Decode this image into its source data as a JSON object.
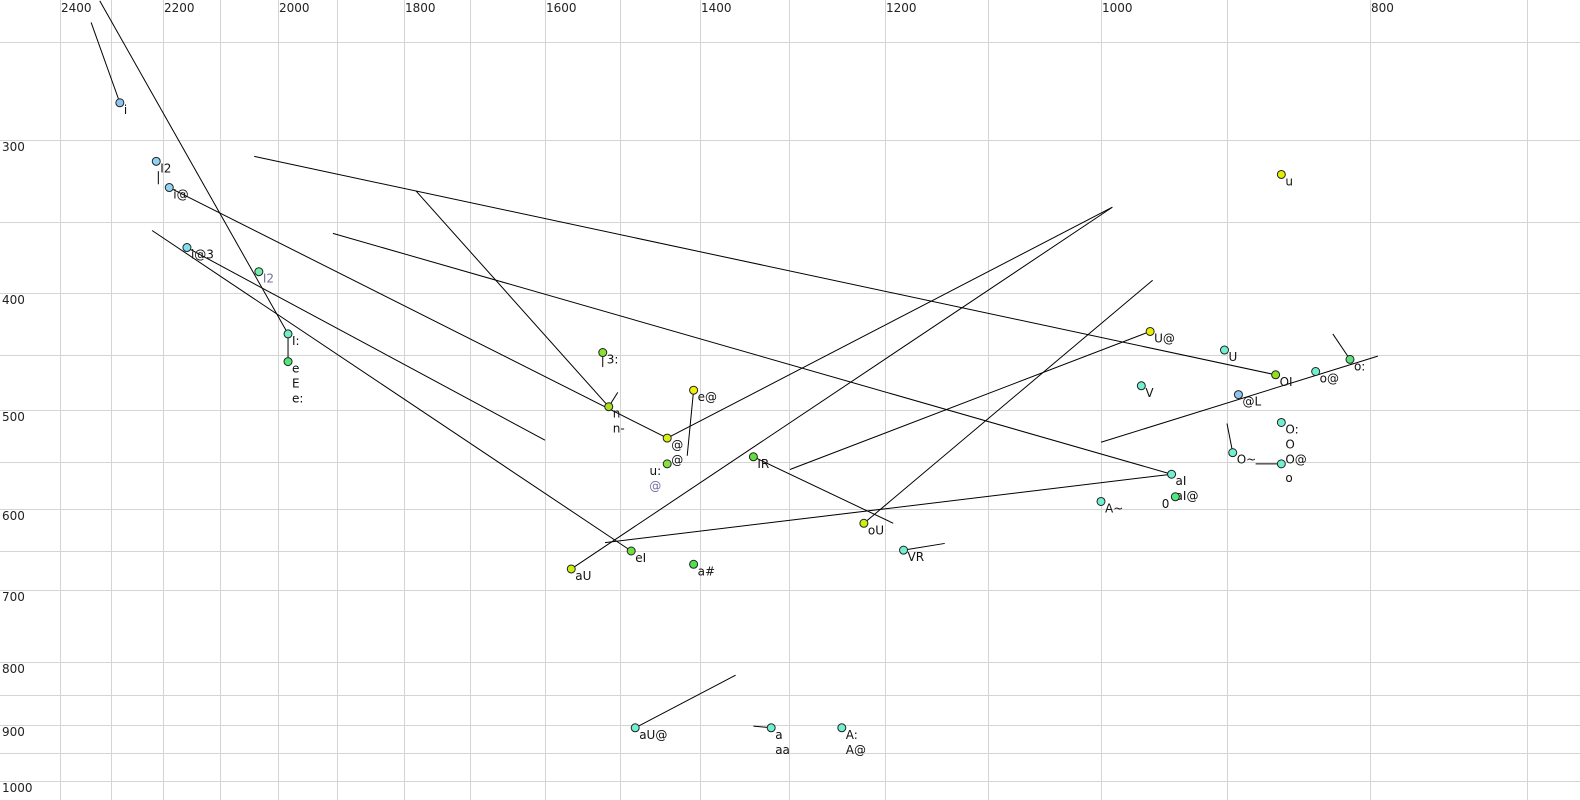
{
  "chart_data": {
    "type": "scatter",
    "title": "",
    "xlabel": "",
    "ylabel": "",
    "x_axis": {
      "reversed": true,
      "position": "top",
      "tick_labels": [
        2400,
        2200,
        2000,
        1800,
        1600,
        1400,
        1200,
        1000,
        800
      ],
      "grid": [
        2400,
        2300,
        2200,
        2100,
        2000,
        1900,
        1800,
        1700,
        1600,
        1500,
        1400,
        1300,
        1200,
        1100,
        1000,
        900,
        800,
        700
      ]
    },
    "y_axis": {
      "position": "left",
      "tick_labels": [
        300,
        400,
        500,
        600,
        700,
        800,
        900,
        1000
      ],
      "grid": [
        250,
        300,
        350,
        400,
        450,
        500,
        550,
        600,
        650,
        700,
        800,
        850,
        900,
        950,
        1000
      ]
    },
    "grid": true,
    "points": [
      {
        "f2": 2283,
        "f1": 281,
        "labels": [
          "i"
        ],
        "color": "#90c4f0"
      },
      {
        "f2": 2213,
        "f1": 313,
        "labels": [
          "I2"
        ],
        "color": "#90d0f0"
      },
      {
        "f2": 2189,
        "f1": 329,
        "labels": [
          "i@"
        ],
        "color": "#90d4f0"
      },
      {
        "f2": 2158,
        "f1": 368,
        "labels": [
          "i@3"
        ],
        "color": "#80e0f0"
      },
      {
        "f2": 2033,
        "f1": 385,
        "labels": [
          "I2"
        ],
        "color": "#70f0a8",
        "gray": true
      },
      {
        "f2": 1983,
        "f1": 433,
        "labels": [
          "I:"
        ],
        "color": "#70f0c0"
      },
      {
        "f2": 1983,
        "f1": 456,
        "labels": [
          "e",
          "E",
          "e:"
        ],
        "color": "#50e878"
      },
      {
        "f2": 1523,
        "f1": 448,
        "labels": [
          "3:"
        ],
        "color": "#88e030"
      },
      {
        "f2": 1515,
        "f1": 497,
        "labels": [
          "n",
          "n-"
        ],
        "color": "#a8e020"
      },
      {
        "f2": 1441,
        "f1": 527,
        "labels": [
          "@",
          "@"
        ],
        "color": "#d8f010"
      },
      {
        "f2": 1441,
        "f1": 552,
        "labels": [
          "u:",
          "@"
        ],
        "color": "#88e040"
      },
      {
        "f2": 1408,
        "f1": 482,
        "labels": [
          "e@"
        ],
        "color": "#f0f000"
      },
      {
        "f2": 1340,
        "f1": 545,
        "labels": [
          "IR"
        ],
        "color": "#60e040"
      },
      {
        "f2": 1565,
        "f1": 673,
        "labels": [
          "aU"
        ],
        "color": "#c8f010"
      },
      {
        "f2": 1486,
        "f1": 650,
        "labels": [
          "eI"
        ],
        "color": "#70e040"
      },
      {
        "f2": 1408,
        "f1": 667,
        "labels": [
          "a#"
        ],
        "color": "#50e050"
      },
      {
        "f2": 1222,
        "f1": 617,
        "labels": [
          "oU"
        ],
        "color": "#c8f010"
      },
      {
        "f2": 1182,
        "f1": 649,
        "labels": [
          "VR"
        ],
        "color": "#70f0d0"
      },
      {
        "f2": 961,
        "f1": 431,
        "labels": [
          "U@"
        ],
        "color": "#e8f000"
      },
      {
        "f2": 902,
        "f1": 446,
        "labels": [
          "U"
        ],
        "color": "#70f0d0"
      },
      {
        "f2": 968,
        "f1": 478,
        "labels": [
          "V"
        ],
        "color": "#70f0d0"
      },
      {
        "f2": 866,
        "f1": 468,
        "labels": [
          "OI"
        ],
        "color": "#90e020"
      },
      {
        "f2": 838,
        "f1": 465,
        "labels": [
          "o@"
        ],
        "color": "#70f0d0"
      },
      {
        "f2": 814,
        "f1": 454,
        "labels": [
          "o:"
        ],
        "color": "#60e080"
      },
      {
        "f2": 892,
        "f1": 486,
        "labels": [
          "@L"
        ],
        "color": "#90c4f0"
      },
      {
        "f2": 862,
        "f1": 512,
        "labels": [
          "O:",
          "O",
          "O@"
        ],
        "color": "#70f0d0"
      },
      {
        "f2": 896,
        "f1": 541,
        "labels": [
          "O~"
        ],
        "color": "#70f0d0"
      },
      {
        "f2": 862,
        "f1": 552,
        "labels": [
          "o"
        ],
        "color": "#70f0d0"
      },
      {
        "f2": 944,
        "f1": 563,
        "labels": [
          "aI",
          "aI@"
        ],
        "color": "#70f0d0"
      },
      {
        "f2": 941,
        "f1": 587,
        "labels": [
          "0"
        ],
        "color": "#50e880"
      },
      {
        "f2": 1000,
        "f1": 592,
        "labels": [
          "A~"
        ],
        "color": "#70f0d0"
      },
      {
        "f2": 862,
        "f1": 321,
        "labels": [
          "u"
        ],
        "color": "#e0f000"
      },
      {
        "f2": 1481,
        "f1": 905,
        "labels": [
          "aU@"
        ],
        "color": "#70f0d0"
      },
      {
        "f2": 1320,
        "f1": 905,
        "labels": [
          "a",
          "aa"
        ],
        "color": "#70f0d0"
      },
      {
        "f2": 1245,
        "f1": 905,
        "labels": [
          "A:",
          "A@"
        ],
        "color": "#70f0d0"
      }
    ],
    "trajectories": [
      {
        "from": [
          2339,
          240
        ],
        "to": [
          2283,
          281
        ]
      },
      {
        "from": [
          2322,
          229
        ],
        "to": [
          1983,
          433
        ]
      },
      {
        "from": [
          2041,
          310
        ],
        "to": [
          866,
          468
        ]
      },
      {
        "from": [
          2189,
          329
        ],
        "to": [
          1441,
          527
        ]
      },
      {
        "from": [
          2221,
          356
        ],
        "to": [
          1486,
          650
        ]
      },
      {
        "from": [
          2158,
          368
        ],
        "to": [
          1600,
          529
        ]
      },
      {
        "from": [
          1907,
          358
        ],
        "to": [
          944,
          563
        ]
      },
      {
        "from": [
          1782,
          331
        ],
        "to": [
          1515,
          497
        ]
      },
      {
        "from": [
          1515,
          497
        ],
        "to": [
          1503,
          484
        ]
      },
      {
        "from": [
          1441,
          527
        ],
        "to": [
          991,
          341
        ]
      },
      {
        "from": [
          1565,
          673
        ],
        "to": [
          991,
          341
        ]
      },
      {
        "from": [
          1408,
          482
        ],
        "to": [
          1416,
          544
        ]
      },
      {
        "from": [
          961,
          431
        ],
        "to": [
          1299,
          558
        ]
      },
      {
        "from": [
          1222,
          617
        ],
        "to": [
          959,
          391
        ]
      },
      {
        "from": [
          1340,
          545
        ],
        "to": [
          1192,
          617
        ]
      },
      {
        "from": [
          1520,
          640
        ],
        "to": [
          944,
          563
        ]
      },
      {
        "from": [
          1182,
          649
        ],
        "to": [
          1142,
          641
        ]
      },
      {
        "from": [
          1000,
          531
        ],
        "to": [
          795,
          451
        ]
      },
      {
        "from": [
          814,
          454
        ],
        "to": [
          826,
          433
        ]
      },
      {
        "from": [
          896,
          541
        ],
        "to": [
          900,
          513
        ]
      },
      {
        "from": [
          880,
          552
        ],
        "to": [
          862,
          552
        ]
      },
      {
        "from": [
          1983,
          433
        ],
        "to": [
          1983,
          456
        ]
      },
      {
        "from": [
          1523,
          448
        ],
        "to": [
          1523,
          461
        ]
      },
      {
        "from": [
          2209,
          319
        ],
        "to": [
          2209,
          327
        ]
      },
      {
        "from": [
          1481,
          905
        ],
        "to": [
          1360,
          820
        ]
      },
      {
        "from": [
          1340,
          902
        ],
        "to": [
          1320,
          905
        ]
      }
    ]
  }
}
